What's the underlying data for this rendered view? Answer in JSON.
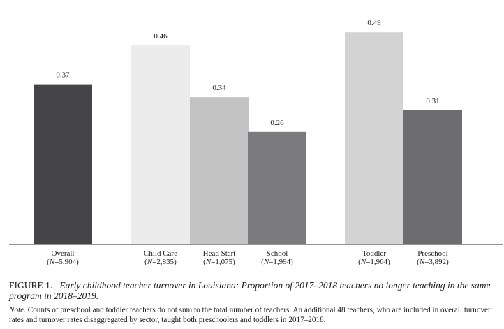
{
  "chart_data": {
    "type": "bar",
    "categories": [
      {
        "name": "Overall",
        "n": "(N=5,904)"
      },
      {
        "name": "Child Care",
        "n": "(N=2,835)"
      },
      {
        "name": "Head Start",
        "n": "(N=1,075)"
      },
      {
        "name": "School",
        "n": "(N=1,994)"
      },
      {
        "name": "Toddler",
        "n": "(N=1,964)"
      },
      {
        "name": "Preschool",
        "n": "(N=3,892)"
      }
    ],
    "values": [
      0.37,
      0.46,
      0.34,
      0.26,
      0.49,
      0.31
    ],
    "value_labels": [
      "0.37",
      "0.46",
      "0.34",
      "0.26",
      "0.49",
      "0.31"
    ],
    "colors": [
      "#454547",
      "#ececec",
      "#c3c3c4",
      "#7b7b7e",
      "#d3d3d4",
      "#6d6d70"
    ],
    "groups": [
      [
        "Overall"
      ],
      [
        "Child Care",
        "Head Start",
        "School"
      ],
      [
        "Toddler",
        "Preschool"
      ]
    ],
    "ylim": [
      0,
      0.5
    ],
    "grid": false,
    "legend": "none"
  },
  "caption": {
    "figure_label": "FIGURE 1.",
    "title": "Early childhood teacher turnover in Louisiana: Proportion of 2017–2018 teachers no longer teaching in the same program in 2018–2019."
  },
  "note": {
    "label": "Note.",
    "text": "Counts of preschool and toddler teachers do not sum to the total number of teachers. An additional 48 teachers, who are included in overall turnover rates and turnover rates disaggregated by sector, taught both preschoolers and toddlers in 2017–2018."
  }
}
